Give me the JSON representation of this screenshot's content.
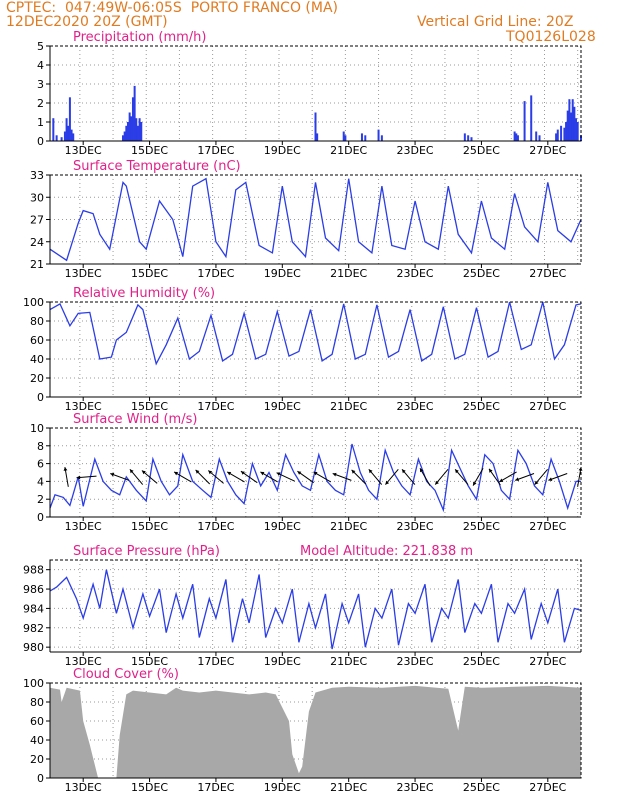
{
  "header": {
    "line1_left": "CPTEC:  047:49W-06:05S  PORTO FRANCO (MA)",
    "line2_left": "12DEC2020 20Z (GMT)",
    "line1_right": "Vertical Grid Line: 20Z",
    "line2_right": "TQ0126L028"
  },
  "colors": {
    "header": "#e07b22",
    "title": "#e0218a",
    "line": "#2b3de6",
    "bar": "#2b3de6",
    "cloud": "#a8a8a8",
    "wind": "#000000"
  },
  "x_ticks": [
    "13DEC",
    "15DEC",
    "17DEC",
    "19DEC",
    "21DEC",
    "23DEC",
    "25DEC",
    "27DEC"
  ],
  "chart_data": [
    {
      "type": "bar",
      "title": "Precipitation (mm/h)",
      "ylim": [
        0,
        5
      ],
      "yticks": [
        "0",
        "1",
        "2",
        "3",
        "4",
        "5"
      ],
      "x_days": [
        0.1,
        0.2,
        0.35,
        0.45,
        0.5,
        0.55,
        0.6,
        0.65,
        0.7,
        2.2,
        2.25,
        2.3,
        2.35,
        2.4,
        2.45,
        2.5,
        2.55,
        2.6,
        2.65,
        2.7,
        2.75,
        8.0,
        8.05,
        8.85,
        8.9,
        9.4,
        9.5,
        9.9,
        10.0,
        12.5,
        12.6,
        12.7,
        14.0,
        14.05,
        14.1,
        14.3,
        14.5,
        14.65,
        14.75,
        15.25,
        15.3,
        15.4,
        15.5,
        15.55,
        15.6,
        15.65,
        15.7,
        15.75,
        15.8,
        15.85,
        15.9,
        16.0
      ],
      "values": [
        1.2,
        0.3,
        0.2,
        0.5,
        1.2,
        0.8,
        2.3,
        0.6,
        0.4,
        0.3,
        0.5,
        0.8,
        1.0,
        1.5,
        1.3,
        2.3,
        2.9,
        1.2,
        0.8,
        1.2,
        1.0,
        1.5,
        0.4,
        0.5,
        0.3,
        0.4,
        0.3,
        0.6,
        0.3,
        0.4,
        0.3,
        0.2,
        0.5,
        0.4,
        0.3,
        2.1,
        2.4,
        0.5,
        0.3,
        0.4,
        0.6,
        0.8,
        0.7,
        1.0,
        1.6,
        2.2,
        1.5,
        2.2,
        1.8,
        1.2,
        1.0,
        0.3
      ]
    },
    {
      "type": "line",
      "title": "Surface Temperature (nC)",
      "ylim": [
        21,
        33
      ],
      "yticks": [
        "21",
        "24",
        "27",
        "30",
        "33"
      ],
      "x_days": [
        0,
        0.5,
        0.85,
        1.0,
        1.3,
        1.5,
        1.8,
        2.2,
        2.3,
        2.7,
        2.9,
        3.3,
        3.7,
        4.0,
        4.3,
        4.7,
        5.0,
        5.3,
        5.6,
        5.9,
        6.3,
        6.7,
        7.0,
        7.3,
        7.7,
        8.0,
        8.3,
        8.7,
        9.0,
        9.3,
        9.7,
        10.0,
        10.3,
        10.7,
        11.0,
        11.3,
        11.7,
        12.0,
        12.3,
        12.7,
        13.0,
        13.3,
        13.7,
        14.0,
        14.3,
        14.7,
        15.0,
        15.3,
        15.7,
        16.0
      ],
      "values": [
        23.0,
        21.5,
        26.5,
        28.2,
        27.8,
        25.0,
        23.0,
        32.0,
        31.5,
        24.0,
        23.0,
        29.5,
        27.0,
        22.0,
        31.5,
        32.5,
        24.0,
        22.0,
        31.0,
        32.0,
        23.5,
        22.5,
        31.5,
        24.0,
        22.0,
        32.0,
        24.5,
        22.8,
        32.5,
        24.0,
        22.5,
        31.5,
        23.5,
        23.0,
        29.5,
        24.0,
        23.0,
        31.5,
        25.0,
        22.5,
        29.5,
        24.5,
        23.0,
        30.5,
        26.0,
        24.0,
        32.0,
        25.5,
        24.0,
        27.0
      ]
    },
    {
      "type": "line",
      "title": "Relative Humidity (%)",
      "ylim": [
        0,
        100
      ],
      "yticks": [
        "0",
        "20",
        "40",
        "60",
        "80",
        "100"
      ],
      "x_days": [
        0,
        0.3,
        0.6,
        0.85,
        1.2,
        1.5,
        1.85,
        2.0,
        2.3,
        2.65,
        2.8,
        3.2,
        3.5,
        3.85,
        4.2,
        4.5,
        4.85,
        5.2,
        5.5,
        5.85,
        6.2,
        6.5,
        6.85,
        7.2,
        7.5,
        7.85,
        8.2,
        8.5,
        8.85,
        9.2,
        9.5,
        9.85,
        10.2,
        10.5,
        10.85,
        11.2,
        11.5,
        11.85,
        12.2,
        12.5,
        12.85,
        13.2,
        13.5,
        13.85,
        14.2,
        14.5,
        14.85,
        15.2,
        15.5,
        15.85,
        16.0
      ],
      "values": [
        92,
        98,
        75,
        88,
        89,
        40,
        42,
        60,
        68,
        97,
        92,
        35,
        55,
        83,
        40,
        48,
        86,
        38,
        45,
        88,
        40,
        45,
        90,
        43,
        48,
        92,
        38,
        45,
        98,
        40,
        45,
        97,
        42,
        48,
        92,
        38,
        45,
        95,
        40,
        45,
        94,
        42,
        48,
        100,
        50,
        55,
        100,
        40,
        55,
        97,
        98
      ]
    },
    {
      "type": "line",
      "title": "Surface Wind (m/s)",
      "ylim": [
        0,
        10
      ],
      "yticks": [
        "0",
        "2",
        "4",
        "6",
        "8",
        "10"
      ],
      "x_days": [
        0,
        0.15,
        0.4,
        0.6,
        0.85,
        1.0,
        1.15,
        1.35,
        1.6,
        1.85,
        2.1,
        2.3,
        2.6,
        2.9,
        3.1,
        3.35,
        3.6,
        3.85,
        4.0,
        4.3,
        4.6,
        4.85,
        5.1,
        5.35,
        5.6,
        5.85,
        6.1,
        6.35,
        6.6,
        6.85,
        7.1,
        7.35,
        7.6,
        7.85,
        8.1,
        8.35,
        8.6,
        8.85,
        9.1,
        9.35,
        9.6,
        9.85,
        10.1,
        10.35,
        10.6,
        10.85,
        11.1,
        11.35,
        11.6,
        11.85,
        12.1,
        12.35,
        12.6,
        12.85,
        13.1,
        13.35,
        13.6,
        13.85,
        14.1,
        14.35,
        14.6,
        14.85,
        15.1,
        15.35,
        15.6,
        15.85,
        16.0
      ],
      "values": [
        1.0,
        2.5,
        2.2,
        1.3,
        4.5,
        1.2,
        3.5,
        6.5,
        4.0,
        3.0,
        2.5,
        4.5,
        3.0,
        1.8,
        6.5,
        4.0,
        2.5,
        3.5,
        7.0,
        4.0,
        3.0,
        2.2,
        6.5,
        4.0,
        2.5,
        1.5,
        6.0,
        3.5,
        5.0,
        3.0,
        7.0,
        5.0,
        3.5,
        3.0,
        7.0,
        4.0,
        3.0,
        2.5,
        8.2,
        5.0,
        3.0,
        2.0,
        7.5,
        5.0,
        3.5,
        2.5,
        6.5,
        4.0,
        3.0,
        0.8,
        7.5,
        5.5,
        3.5,
        2.0,
        7.0,
        6.0,
        3.0,
        2.0,
        7.5,
        6.0,
        3.5,
        2.5,
        6.5,
        4.0,
        1.0,
        4.0,
        4.0
      ]
    },
    {
      "type": "line",
      "title": "Surface Pressure (hPa)",
      "annotation": "Model Altitude: 221.838 m",
      "ylim": [
        979.5,
        989
      ],
      "yticks": [
        "980",
        "982",
        "984",
        "986",
        "988"
      ],
      "x_days": [
        0,
        0.2,
        0.5,
        0.8,
        1.0,
        1.3,
        1.5,
        1.7,
        2.0,
        2.2,
        2.5,
        2.8,
        3.0,
        3.3,
        3.5,
        3.8,
        4.0,
        4.3,
        4.5,
        4.8,
        5.0,
        5.3,
        5.5,
        5.8,
        6.0,
        6.3,
        6.5,
        6.8,
        7.0,
        7.3,
        7.5,
        7.8,
        8.0,
        8.3,
        8.5,
        8.8,
        9.0,
        9.3,
        9.5,
        9.8,
        10.0,
        10.3,
        10.5,
        10.8,
        11.0,
        11.3,
        11.5,
        11.8,
        12.0,
        12.3,
        12.5,
        12.8,
        13.0,
        13.3,
        13.5,
        13.8,
        14.0,
        14.3,
        14.5,
        14.8,
        15.0,
        15.3,
        15.5,
        15.8,
        16.0
      ],
      "values": [
        985.8,
        986.2,
        987.2,
        985.0,
        983.0,
        986.5,
        984.0,
        988.0,
        983.5,
        986.0,
        982.0,
        985.5,
        983.2,
        986.0,
        981.5,
        985.5,
        983.0,
        986.5,
        981.0,
        985.0,
        983.0,
        987.0,
        980.5,
        985.0,
        982.5,
        987.5,
        981.0,
        984.0,
        982.5,
        986.0,
        980.5,
        984.5,
        982.0,
        985.5,
        979.8,
        984.5,
        982.5,
        985.5,
        980.0,
        984.0,
        983.0,
        986.0,
        980.2,
        984.5,
        983.5,
        986.5,
        980.5,
        984.0,
        983.0,
        987.0,
        981.5,
        984.5,
        983.5,
        986.5,
        980.5,
        984.5,
        983.5,
        986.0,
        980.8,
        984.5,
        982.5,
        986.0,
        980.5,
        984.0,
        983.8
      ]
    },
    {
      "type": "area",
      "title": "Cloud Cover (%)",
      "ylim": [
        0,
        100
      ],
      "yticks": [
        "0",
        "20",
        "40",
        "60",
        "80",
        "100"
      ],
      "x_days": [
        0,
        0.3,
        0.35,
        0.5,
        0.9,
        1.0,
        1.2,
        1.45,
        1.6,
        2.0,
        2.1,
        2.3,
        2.5,
        3.0,
        3.5,
        3.8,
        4.0,
        4.5,
        5.0,
        5.5,
        6.0,
        6.5,
        6.8,
        7.2,
        7.3,
        7.5,
        7.6,
        7.8,
        8.0,
        8.2,
        8.5,
        9.0,
        10.0,
        11.0,
        12.0,
        12.3,
        12.5,
        13.0,
        14.0,
        15.0,
        15.5,
        16.0
      ],
      "values": [
        95,
        93,
        80,
        95,
        92,
        60,
        35,
        0,
        0,
        0,
        45,
        88,
        92,
        90,
        88,
        95,
        92,
        90,
        92,
        90,
        88,
        90,
        88,
        60,
        25,
        5,
        12,
        70,
        90,
        92,
        95,
        96,
        95,
        97,
        94,
        50,
        96,
        95,
        96,
        97,
        96,
        95
      ]
    }
  ],
  "wind_arrows": [
    {
      "x_day": 0.5,
      "ang": -100
    },
    {
      "x_day": 1.1,
      "ang": 175
    },
    {
      "x_day": 2.1,
      "ang": 200
    },
    {
      "x_day": 2.6,
      "ang": 230
    },
    {
      "x_day": 3.0,
      "ang": 220
    },
    {
      "x_day": 4.0,
      "ang": 210
    },
    {
      "x_day": 4.6,
      "ang": 225
    },
    {
      "x_day": 5.0,
      "ang": 220
    },
    {
      "x_day": 5.6,
      "ang": 210
    },
    {
      "x_day": 6.0,
      "ang": 215
    },
    {
      "x_day": 6.6,
      "ang": 210
    },
    {
      "x_day": 7.1,
      "ang": 205
    },
    {
      "x_day": 7.7,
      "ang": 215
    },
    {
      "x_day": 8.2,
      "ang": 210
    },
    {
      "x_day": 8.8,
      "ang": 200
    },
    {
      "x_day": 9.3,
      "ang": 225
    },
    {
      "x_day": 9.8,
      "ang": 230
    },
    {
      "x_day": 10.3,
      "ang": 130
    },
    {
      "x_day": 10.8,
      "ang": 230
    },
    {
      "x_day": 11.3,
      "ang": 240
    },
    {
      "x_day": 11.8,
      "ang": 130
    },
    {
      "x_day": 12.4,
      "ang": 230
    },
    {
      "x_day": 12.9,
      "ang": 120
    },
    {
      "x_day": 13.4,
      "ang": 235
    },
    {
      "x_day": 13.8,
      "ang": 150
    },
    {
      "x_day": 14.3,
      "ang": 160
    },
    {
      "x_day": 14.8,
      "ang": 130
    },
    {
      "x_day": 15.3,
      "ang": 160
    },
    {
      "x_day": 15.95,
      "ang": -80
    }
  ]
}
